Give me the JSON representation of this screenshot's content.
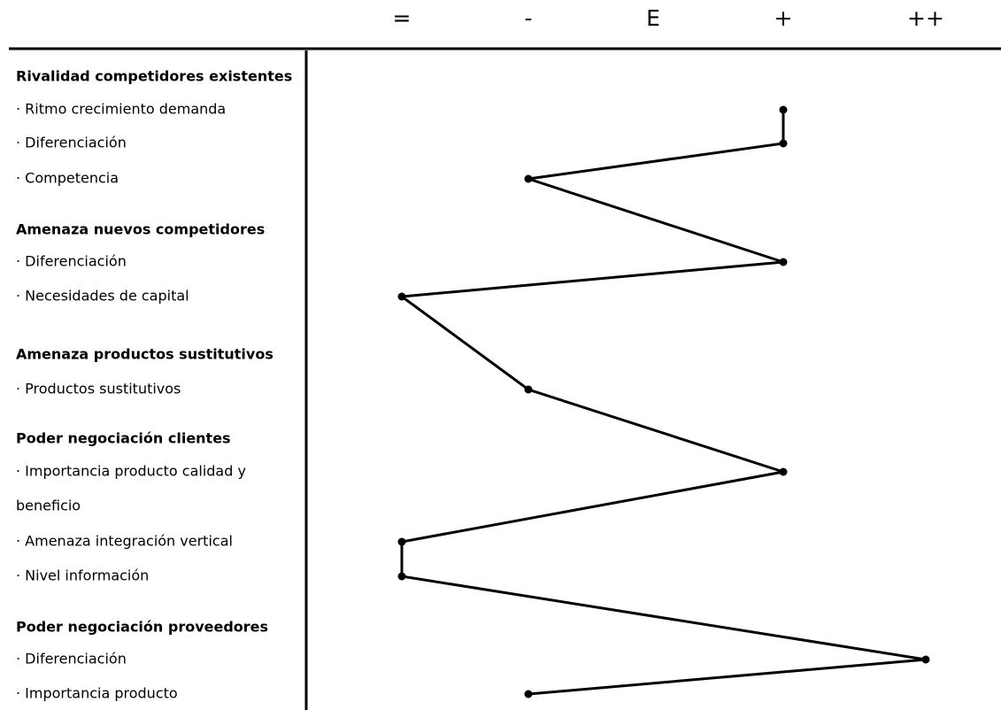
{
  "chart_data": {
    "type": "line",
    "scale": [
      "=",
      "-",
      "E",
      "+",
      "++"
    ],
    "rows": [
      {
        "label": "Rivalidad competidores existentes",
        "kind": "group"
      },
      {
        "label": "· Ritmo crecimiento demanda",
        "kind": "item",
        "value": "+"
      },
      {
        "label": "· Diferenciación",
        "kind": "item",
        "value": "+"
      },
      {
        "label": "· Competencia",
        "kind": "item",
        "value": "-"
      },
      {
        "label": "Amenaza nuevos competidores",
        "kind": "group"
      },
      {
        "label": "· Diferenciación",
        "kind": "item",
        "value": "+"
      },
      {
        "label": "· Necesidades de capital",
        "kind": "item",
        "value": "="
      },
      {
        "label": "Amenaza productos sustitutivos",
        "kind": "group"
      },
      {
        "label": "· Productos sustitutivos",
        "kind": "item",
        "value": "-"
      },
      {
        "label": "Poder negociación clientes",
        "kind": "group"
      },
      {
        "label": "· Importancia producto calidad y",
        "kind": "item",
        "value": "+"
      },
      {
        "label": "beneficio",
        "kind": "continuation"
      },
      {
        "label": "· Amenaza integración vertical",
        "kind": "item",
        "value": "="
      },
      {
        "label": "· Nivel información",
        "kind": "item",
        "value": "="
      },
      {
        "label": "Poder negociación proveedores",
        "kind": "group"
      },
      {
        "label": "· Diferenciación",
        "kind": "item",
        "value": "++"
      },
      {
        "label": "· Importancia producto",
        "kind": "item",
        "value": "-"
      }
    ],
    "line_color": "#000000",
    "grid": false
  }
}
